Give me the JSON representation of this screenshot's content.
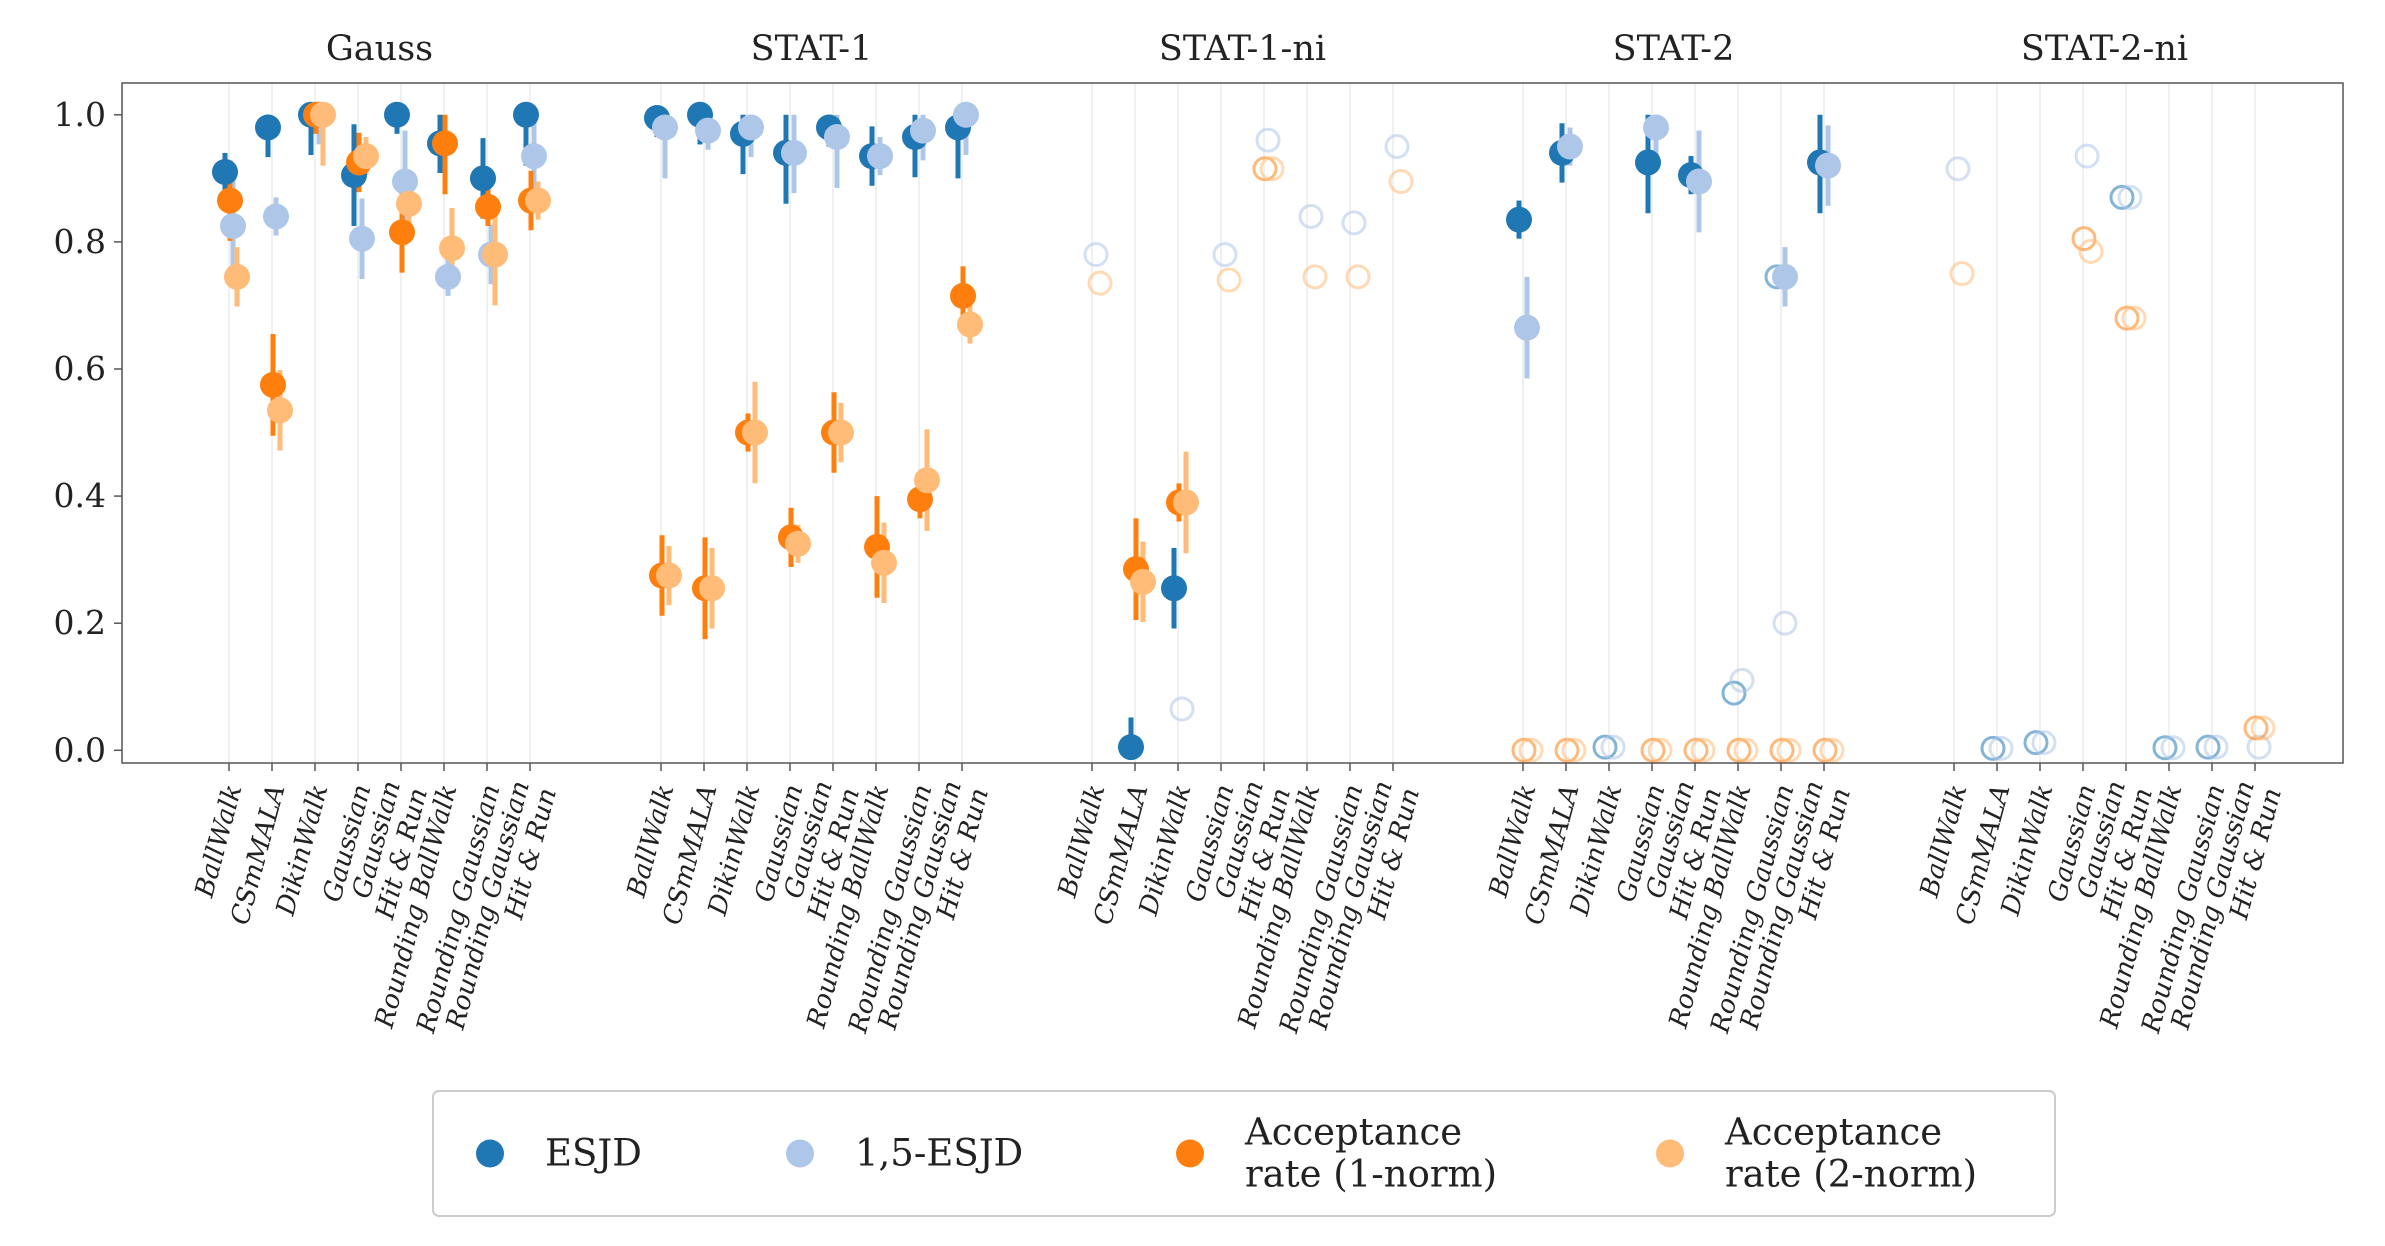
{
  "chart_data": {
    "type": "scatter",
    "ylim": [
      -0.02,
      1.05
    ],
    "yticks": [
      "0.0",
      "0.2",
      "0.4",
      "0.6",
      "0.8",
      "1.0"
    ],
    "panels": [
      "Gauss",
      "STAT-1",
      "STAT-1-ni",
      "STAT-2",
      "STAT-2-ni"
    ],
    "samplers": [
      "BallWalk",
      "CSmMALA",
      "DikinWalk",
      "Gaussian",
      "Gaussian\nHit & Run",
      "Rounding BallWalk",
      "Rounding Gaussian",
      "Rounding Gaussian\nHit & Run"
    ],
    "legend_position": "bottom-center",
    "series": [
      {
        "name": "ESJD",
        "color": "#1f77b4",
        "values": [
          [
            0.91,
            0.98,
            1.0,
            0.905,
            1.0,
            0.955,
            0.9,
            1.0
          ],
          [
            0.995,
            1.0,
            0.97,
            0.94,
            0.98,
            0.935,
            0.965,
            0.98
          ],
          [
            null,
            0.005,
            0.255,
            null,
            null,
            null,
            null,
            null
          ],
          [
            0.835,
            0.94,
            null,
            0.925,
            0.905,
            null,
            null,
            0.925
          ],
          [
            null,
            null,
            null,
            null,
            null,
            null,
            null,
            null
          ]
        ],
        "faded": [
          [
            null,
            null,
            null,
            null,
            null,
            null,
            null,
            null
          ],
          [
            null,
            null,
            null,
            null,
            null,
            null,
            null,
            null
          ],
          [
            null,
            null,
            null,
            null,
            null,
            null,
            null,
            null
          ],
          [
            null,
            null,
            0.005,
            null,
            null,
            0.09,
            0.745,
            null
          ],
          [
            null,
            0.003,
            0.012,
            null,
            0.87,
            0.004,
            0.005,
            null
          ]
        ]
      },
      {
        "name": "1,5-ESJD",
        "color": "#aec7e8",
        "values": [
          [
            0.825,
            0.84,
            1.0,
            0.805,
            0.895,
            0.745,
            0.78,
            0.935
          ],
          [
            0.98,
            0.975,
            0.98,
            0.94,
            0.965,
            0.935,
            0.975,
            1.0
          ],
          [
            null,
            null,
            null,
            null,
            null,
            null,
            null,
            null
          ],
          [
            0.665,
            0.95,
            null,
            0.98,
            0.895,
            null,
            0.745,
            0.92
          ],
          [
            null,
            null,
            null,
            null,
            null,
            null,
            null,
            null
          ]
        ],
        "faded": [
          [
            null,
            null,
            null,
            null,
            null,
            null,
            null,
            null
          ],
          [
            null,
            null,
            null,
            null,
            null,
            null,
            null,
            null
          ],
          [
            0.78,
            null,
            0.065,
            0.78,
            0.96,
            0.84,
            0.83,
            0.95
          ],
          [
            null,
            null,
            0.005,
            null,
            null,
            0.11,
            0.2,
            null
          ],
          [
            0.915,
            0.003,
            0.012,
            0.935,
            0.87,
            0.004,
            0.005,
            0.005
          ]
        ]
      },
      {
        "name": "Acceptance\nrate (1-norm)",
        "color": "#ff7f0e",
        "values": [
          [
            0.865,
            0.575,
            1.0,
            0.925,
            0.815,
            0.955,
            0.855,
            0.865
          ],
          [
            0.275,
            0.255,
            0.5,
            0.335,
            0.5,
            0.32,
            0.395,
            0.715
          ],
          [
            null,
            0.285,
            0.39,
            null,
            null,
            null,
            null,
            null
          ],
          [
            null,
            null,
            null,
            null,
            null,
            null,
            null,
            null
          ],
          [
            null,
            null,
            null,
            null,
            null,
            null,
            null,
            null
          ]
        ],
        "faded": [
          [
            null,
            null,
            null,
            null,
            null,
            null,
            null,
            null
          ],
          [
            null,
            null,
            null,
            null,
            null,
            null,
            null,
            null
          ],
          [
            null,
            null,
            null,
            null,
            0.915,
            null,
            null,
            null
          ],
          [
            0.0,
            0.0,
            null,
            0.0,
            0.0,
            0.0,
            0.0,
            0.0
          ],
          [
            null,
            null,
            null,
            0.805,
            0.68,
            null,
            null,
            0.035
          ]
        ]
      },
      {
        "name": "Acceptance\nrate (2-norm)",
        "color": "#ffbb78",
        "values": [
          [
            0.745,
            0.535,
            1.0,
            0.935,
            0.86,
            0.79,
            0.78,
            0.865
          ],
          [
            0.275,
            0.255,
            0.5,
            0.325,
            0.5,
            0.295,
            0.425,
            0.67
          ],
          [
            null,
            0.265,
            0.39,
            null,
            null,
            null,
            null,
            null
          ],
          [
            null,
            null,
            null,
            null,
            null,
            null,
            null,
            null
          ],
          [
            null,
            null,
            null,
            null,
            null,
            null,
            null,
            null
          ]
        ],
        "faded": [
          [
            null,
            null,
            null,
            null,
            null,
            null,
            null,
            null
          ],
          [
            null,
            null,
            null,
            null,
            null,
            null,
            null,
            null
          ],
          [
            0.735,
            null,
            null,
            0.74,
            0.915,
            0.745,
            0.745,
            0.895
          ],
          [
            0.0,
            0.0,
            null,
            0.0,
            0.0,
            0.0,
            0.0,
            0.0
          ],
          [
            0.75,
            null,
            null,
            0.785,
            0.68,
            null,
            null,
            0.035
          ]
        ]
      }
    ]
  }
}
